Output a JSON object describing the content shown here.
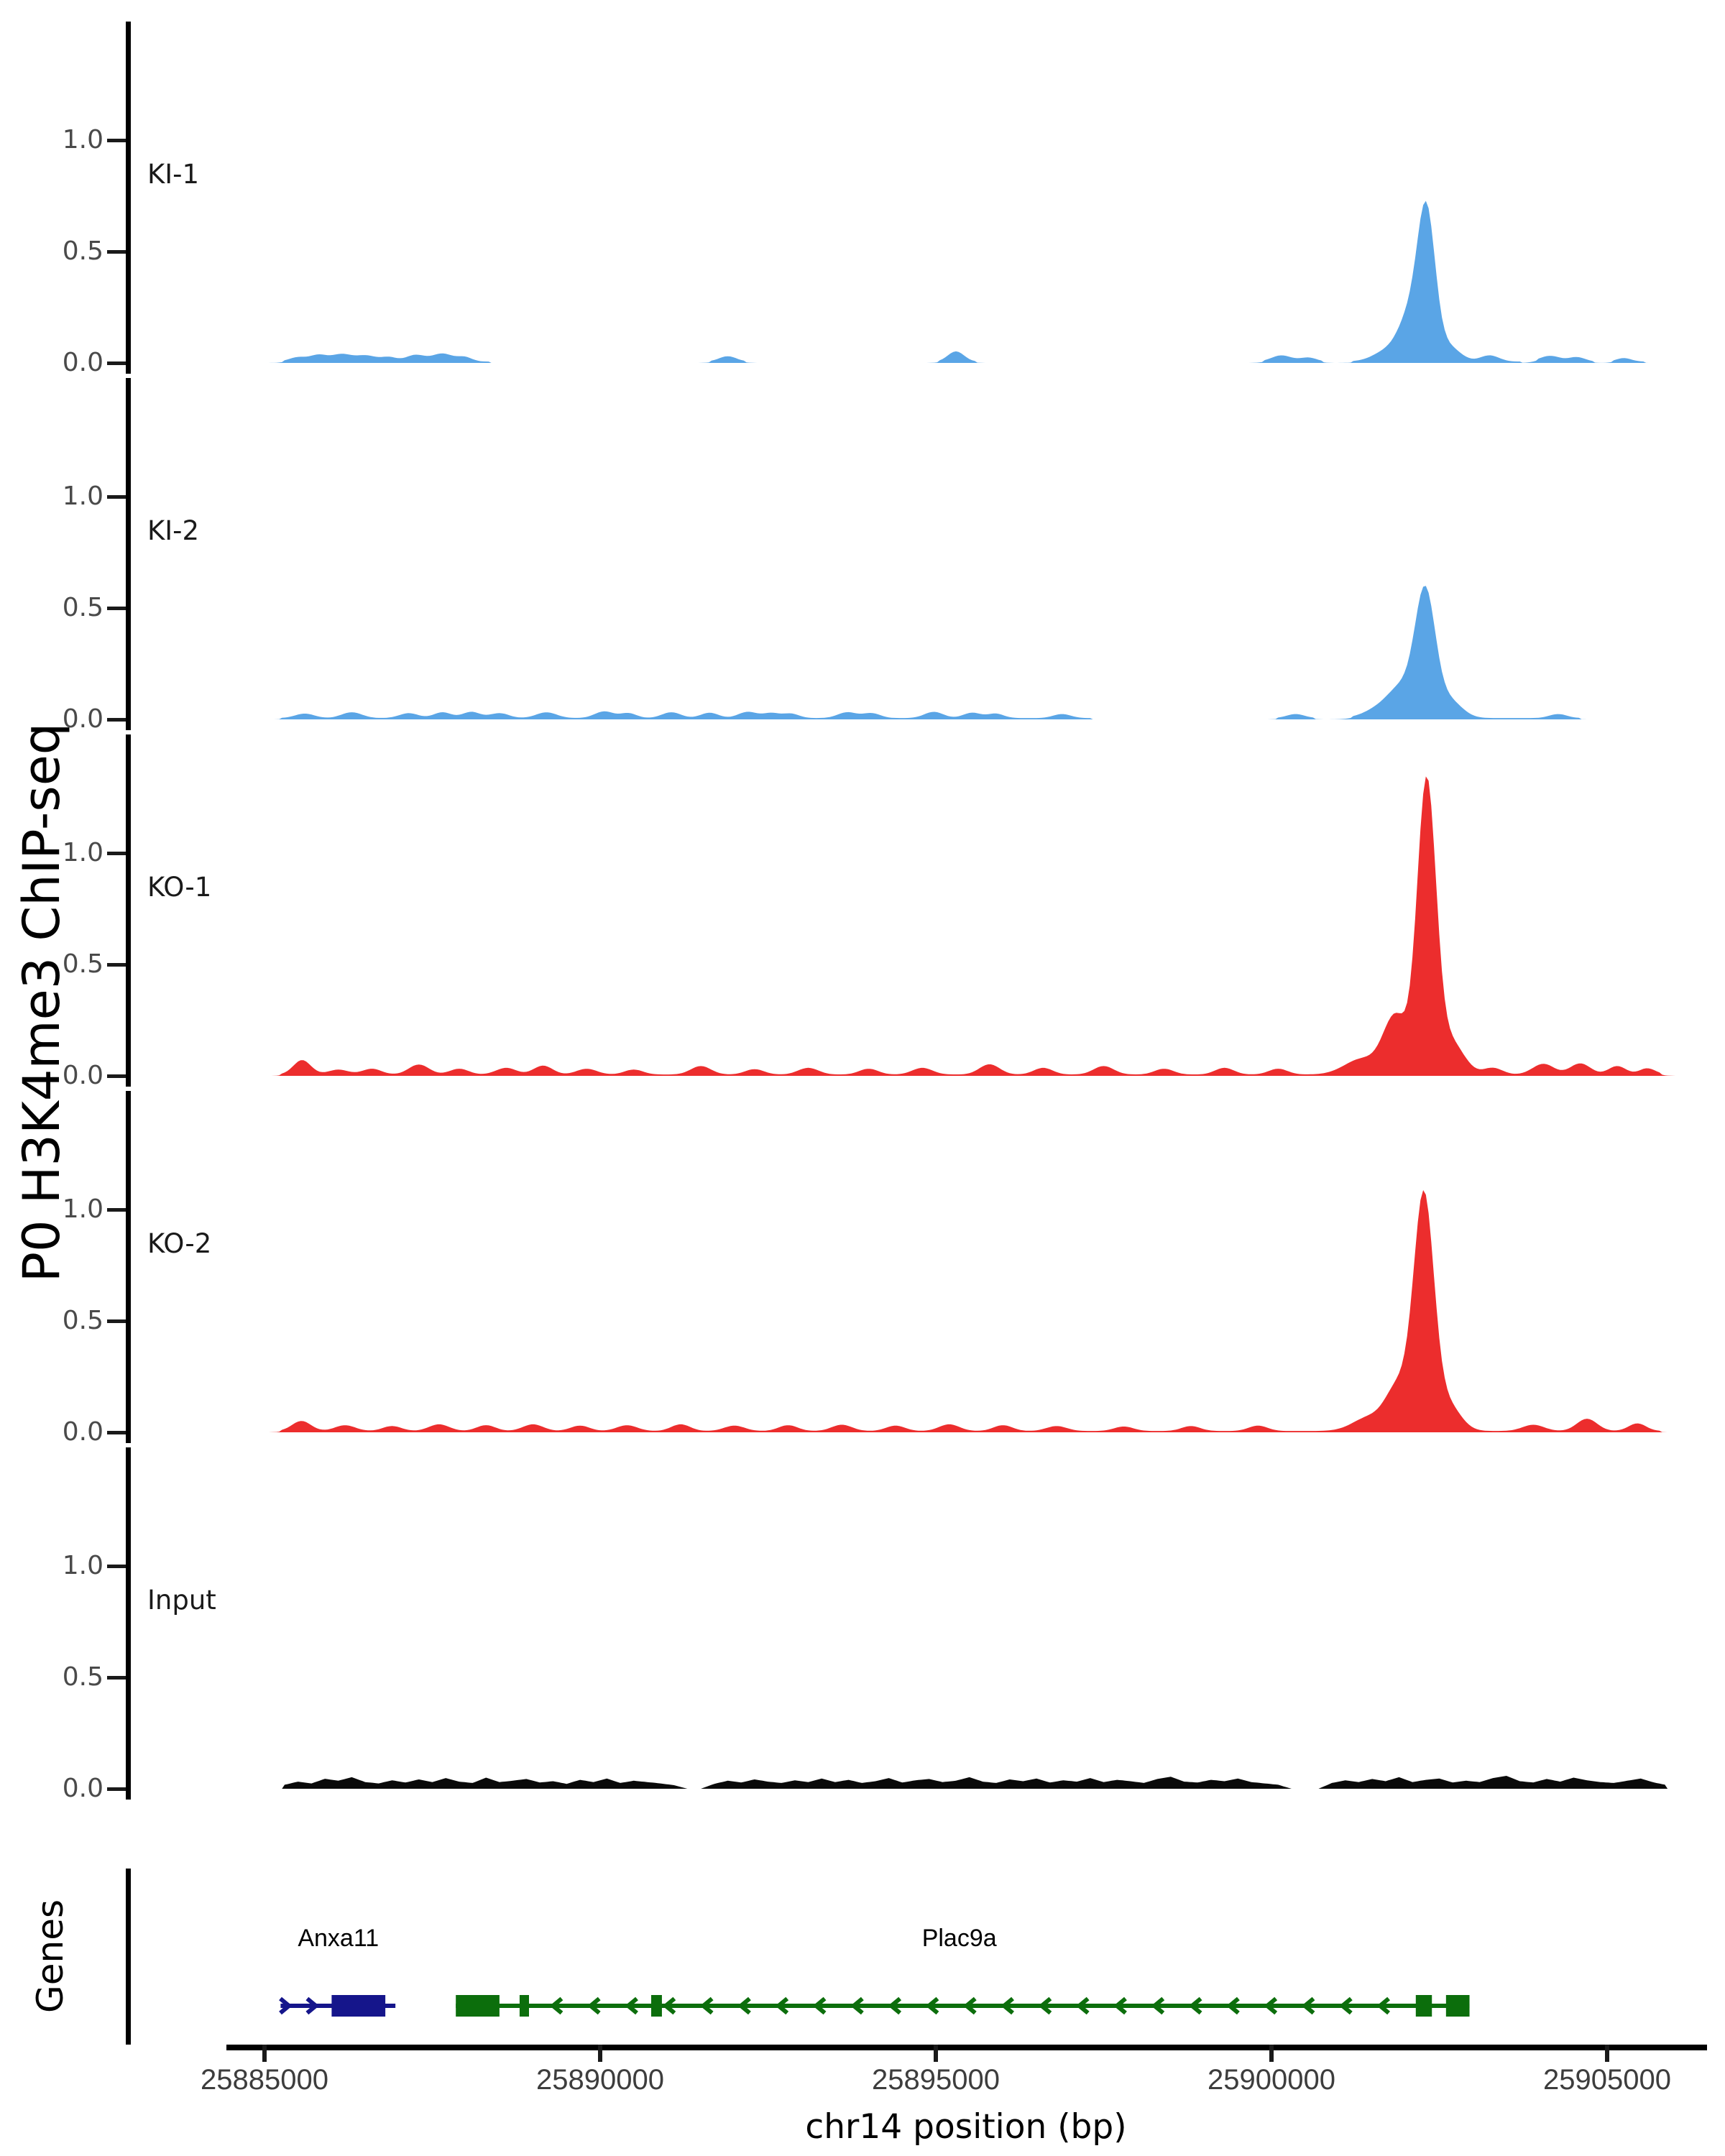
{
  "chart_data": {
    "type": "area",
    "description": "Genome-browser style ChIP-seq coverage tracks over chr14 locus",
    "y_axis_title": "P0 H3K4me3 ChIP-seq",
    "genes_axis_title": "Genes",
    "x_axis": {
      "title": "chr14 position (bp)",
      "ticks": [
        {
          "bp": 25885000,
          "label": "25885000"
        },
        {
          "bp": 25890000,
          "label": "25890000"
        },
        {
          "bp": 25895000,
          "label": "25895000"
        },
        {
          "bp": 25900000,
          "label": "25900000"
        },
        {
          "bp": 25905000,
          "label": "25905000"
        }
      ],
      "range_bp": [
        25884600,
        25906200
      ]
    },
    "y_ticks": [
      {
        "value": 1.0,
        "label": "1.0"
      },
      {
        "value": 0.5,
        "label": "0.5"
      },
      {
        "value": 0.0,
        "label": "0.0"
      }
    ],
    "y_range": [
      -0.06,
      1.53
    ],
    "grid": false,
    "tracks": [
      {
        "label": "KI-1",
        "color": "#5aa5e6",
        "summit_bp": 25902310,
        "summit_value": 0.62,
        "baseline_value": 0.006,
        "baseline_segments": [
          [
            25885300,
            25888350
          ],
          [
            25891650,
            25892150
          ],
          [
            25895050,
            25895600
          ],
          [
            25899900,
            25900750
          ],
          [
            25901200,
            25903700
          ],
          [
            25903950,
            25904800
          ],
          [
            25905100,
            25905550
          ]
        ],
        "bumps": [
          [
            25885500,
            130,
            0.02
          ],
          [
            25885800,
            120,
            0.028
          ],
          [
            25886150,
            160,
            0.034
          ],
          [
            25886520,
            140,
            0.026
          ],
          [
            25886850,
            120,
            0.02
          ],
          [
            25887250,
            140,
            0.03
          ],
          [
            25887650,
            150,
            0.036
          ],
          [
            25887980,
            110,
            0.02
          ],
          [
            25891900,
            130,
            0.024
          ],
          [
            25895300,
            120,
            0.046
          ],
          [
            25900150,
            150,
            0.028
          ],
          [
            25900550,
            120,
            0.018
          ],
          [
            25901750,
            220,
            0.05
          ],
          [
            25902080,
            170,
            0.2
          ],
          [
            25902310,
            130,
            0.62
          ],
          [
            25902620,
            180,
            0.07
          ],
          [
            25903250,
            140,
            0.028
          ],
          [
            25904150,
            150,
            0.026
          ],
          [
            25904550,
            120,
            0.02
          ],
          [
            25905250,
            110,
            0.016
          ]
        ]
      },
      {
        "label": "KI-2",
        "color": "#5aa5e6",
        "summit_bp": 25902290,
        "summit_value": 0.55,
        "baseline_value": 0.006,
        "baseline_segments": [
          [
            25885250,
            25897300
          ],
          [
            25900100,
            25900650
          ],
          [
            25901200,
            25904600
          ]
        ],
        "bumps": [
          [
            25885600,
            140,
            0.02
          ],
          [
            25886300,
            150,
            0.026
          ],
          [
            25887150,
            140,
            0.022
          ],
          [
            25887650,
            130,
            0.026
          ],
          [
            25888080,
            130,
            0.028
          ],
          [
            25888500,
            140,
            0.022
          ],
          [
            25889200,
            150,
            0.026
          ],
          [
            25890060,
            140,
            0.03
          ],
          [
            25890420,
            120,
            0.022
          ],
          [
            25891060,
            140,
            0.026
          ],
          [
            25891630,
            130,
            0.024
          ],
          [
            25892200,
            140,
            0.028
          ],
          [
            25892550,
            120,
            0.022
          ],
          [
            25892840,
            120,
            0.02
          ],
          [
            25893680,
            140,
            0.026
          ],
          [
            25894040,
            130,
            0.022
          ],
          [
            25894970,
            140,
            0.028
          ],
          [
            25895540,
            130,
            0.024
          ],
          [
            25895890,
            120,
            0.02
          ],
          [
            25896880,
            130,
            0.018
          ],
          [
            25900360,
            130,
            0.018
          ],
          [
            25901600,
            220,
            0.04
          ],
          [
            25901950,
            200,
            0.13
          ],
          [
            25902290,
            150,
            0.55
          ],
          [
            25902640,
            190,
            0.08
          ],
          [
            25904270,
            130,
            0.018
          ]
        ]
      },
      {
        "label": "KO-1",
        "color": "#ec2d2d",
        "summit_bp": 25902310,
        "summit_value": 1.3,
        "baseline_value": 0.006,
        "baseline_segments": [
          [
            25885250,
            25905780
          ]
        ],
        "bumps": [
          [
            25885560,
            130,
            0.065
          ],
          [
            25886100,
            150,
            0.022
          ],
          [
            25886600,
            140,
            0.026
          ],
          [
            25887300,
            150,
            0.045
          ],
          [
            25887900,
            140,
            0.026
          ],
          [
            25888600,
            150,
            0.03
          ],
          [
            25889150,
            140,
            0.04
          ],
          [
            25889800,
            150,
            0.026
          ],
          [
            25890500,
            140,
            0.022
          ],
          [
            25891500,
            150,
            0.038
          ],
          [
            25892300,
            140,
            0.024
          ],
          [
            25893100,
            150,
            0.03
          ],
          [
            25894000,
            140,
            0.026
          ],
          [
            25894800,
            150,
            0.03
          ],
          [
            25895800,
            150,
            0.046
          ],
          [
            25896600,
            140,
            0.03
          ],
          [
            25897500,
            150,
            0.038
          ],
          [
            25898400,
            140,
            0.026
          ],
          [
            25899300,
            140,
            0.03
          ],
          [
            25900100,
            140,
            0.026
          ],
          [
            25901350,
            260,
            0.07
          ],
          [
            25901850,
            180,
            0.26
          ],
          [
            25902310,
            140,
            1.3
          ],
          [
            25902660,
            200,
            0.15
          ],
          [
            25903300,
            140,
            0.03
          ],
          [
            25904050,
            160,
            0.048
          ],
          [
            25904600,
            150,
            0.05
          ],
          [
            25905150,
            130,
            0.038
          ],
          [
            25905600,
            120,
            0.028
          ]
        ]
      },
      {
        "label": "KO-2",
        "color": "#ec2d2d",
        "summit_bp": 25902270,
        "summit_value": 1.03,
        "baseline_value": 0.006,
        "baseline_segments": [
          [
            25885250,
            25905780
          ]
        ],
        "bumps": [
          [
            25885550,
            140,
            0.045
          ],
          [
            25886200,
            150,
            0.026
          ],
          [
            25886900,
            140,
            0.022
          ],
          [
            25887600,
            150,
            0.03
          ],
          [
            25888300,
            140,
            0.026
          ],
          [
            25889000,
            150,
            0.03
          ],
          [
            25889700,
            140,
            0.024
          ],
          [
            25890400,
            150,
            0.026
          ],
          [
            25891200,
            140,
            0.03
          ],
          [
            25892000,
            150,
            0.024
          ],
          [
            25892800,
            140,
            0.026
          ],
          [
            25893600,
            150,
            0.028
          ],
          [
            25894400,
            140,
            0.024
          ],
          [
            25895200,
            150,
            0.03
          ],
          [
            25896000,
            140,
            0.026
          ],
          [
            25896800,
            150,
            0.022
          ],
          [
            25897800,
            140,
            0.02
          ],
          [
            25898800,
            140,
            0.022
          ],
          [
            25899800,
            140,
            0.024
          ],
          [
            25901450,
            240,
            0.06
          ],
          [
            25901900,
            190,
            0.2
          ],
          [
            25902270,
            150,
            1.03
          ],
          [
            25902620,
            190,
            0.12
          ],
          [
            25903900,
            160,
            0.028
          ],
          [
            25904700,
            150,
            0.055
          ],
          [
            25905450,
            130,
            0.034
          ]
        ]
      },
      {
        "label": "Input",
        "color": "#0a0a0a",
        "summit_bp": null,
        "summit_value": null,
        "baseline_value": 0.0,
        "baseline_segments": [],
        "bumps": [],
        "noise": {
          "start_bp": 25885300,
          "step_bp": 200,
          "values": [
            0.018,
            0.032,
            0.024,
            0.045,
            0.036,
            0.052,
            0.03,
            0.024,
            0.038,
            0.028,
            0.042,
            0.03,
            0.048,
            0.032,
            0.026,
            0.05,
            0.03,
            0.036,
            0.044,
            0.028,
            0.034,
            0.022,
            0.04,
            0.03,
            0.046,
            0.026,
            0.036,
            0.03,
            0.024,
            0.016,
            0,
            0,
            0.022,
            0.036,
            0.028,
            0.042,
            0.032,
            0.026,
            0.038,
            0.03,
            0.046,
            0.03,
            0.04,
            0.026,
            0.034,
            0.048,
            0.028,
            0.038,
            0.044,
            0.03,
            0.036,
            0.052,
            0.032,
            0.026,
            0.042,
            0.034,
            0.046,
            0.028,
            0.038,
            0.032,
            0.048,
            0.03,
            0.04,
            0.034,
            0.026,
            0.044,
            0.054,
            0.032,
            0.028,
            0.04,
            0.034,
            0.046,
            0.03,
            0.024,
            0.018,
            0,
            0,
            0,
            0.026,
            0.038,
            0.03,
            0.044,
            0.034,
            0.052,
            0.03,
            0.04,
            0.046,
            0.028,
            0.036,
            0.03,
            0.048,
            0.058,
            0.034,
            0.028,
            0.044,
            0.032,
            0.05,
            0.038,
            0.03,
            0.026,
            0.036,
            0.046,
            0.028,
            0.016
          ]
        }
      }
    ],
    "genes": [
      {
        "name": "Anxa11",
        "color": "#15158b",
        "strand": "+",
        "start_bp": 25885240,
        "end_bp": 25886950,
        "exons": [
          [
            25886000,
            25886800
          ]
        ],
        "chevrons_bp": [
          25885300,
          25885700
        ],
        "label_bp": 25886100
      },
      {
        "name": "Plac9a",
        "color": "#0c6e0c",
        "strand": "-",
        "start_bp": 25887850,
        "end_bp": 25902950,
        "exons": [
          [
            25887850,
            25888500
          ],
          [
            25888800,
            25888940
          ],
          [
            25890760,
            25890920
          ],
          [
            25902150,
            25902390
          ],
          [
            25902600,
            25902950
          ]
        ],
        "chevron_spacing_bp": 560,
        "label_bp": 25895350
      }
    ]
  }
}
